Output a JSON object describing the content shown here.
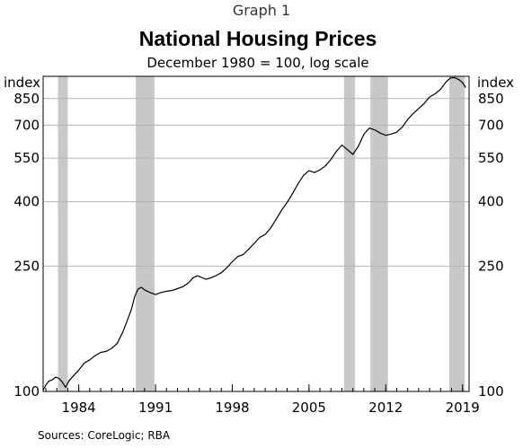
{
  "chart_data": {
    "type": "line",
    "supertitle": "Graph 1",
    "title": "National Housing Prices",
    "subtitle": "December 1980 = 100, log scale",
    "left_unit": "index",
    "right_unit": "index",
    "source": "Sources:  CoreLogic; RBA",
    "y_scale": "log",
    "ylim": [
      100,
      1000
    ],
    "xlim": [
      1980.75,
      2019.6
    ],
    "y_ticks": [
      {
        "value": 100,
        "label": "100"
      },
      {
        "value": 250,
        "label": "250"
      },
      {
        "value": 400,
        "label": "400"
      },
      {
        "value": 550,
        "label": "550"
      },
      {
        "value": 700,
        "label": "700"
      },
      {
        "value": 850,
        "label": "850"
      }
    ],
    "x_ticks": [
      {
        "value": 1984,
        "label": "1984"
      },
      {
        "value": 1991,
        "label": "1991"
      },
      {
        "value": 1998,
        "label": "1998"
      },
      {
        "value": 2005,
        "label": "2005"
      },
      {
        "value": 2012,
        "label": "2012"
      },
      {
        "value": 2019,
        "label": "2019"
      }
    ],
    "shaded_periods": [
      [
        1982.1,
        1983.0
      ],
      [
        1989.2,
        1990.9
      ],
      [
        2008.2,
        2009.2
      ],
      [
        2010.6,
        2012.2
      ],
      [
        2017.8,
        2019.2
      ]
    ],
    "grid": true,
    "line_color": "#000000",
    "shade_color": "#c8c8c8",
    "series": [
      {
        "x": [
          1980.75,
          1981.0,
          1981.3,
          1981.6,
          1981.9,
          1982.2,
          1982.5,
          1982.8,
          1983.1,
          1983.5,
          1984.0,
          1984.5,
          1985.0,
          1985.5,
          1986.0,
          1986.5,
          1987.0,
          1987.5,
          1988.0,
          1988.4,
          1988.8,
          1989.1,
          1989.4,
          1989.7,
          1990.0,
          1990.5,
          1991.0,
          1991.5,
          1992.0,
          1992.5,
          1993.0,
          1993.5,
          1994.0,
          1994.4,
          1994.8,
          1995.2,
          1995.6,
          1996.0,
          1996.5,
          1997.0,
          1997.5,
          1998.0,
          1998.5,
          1999.0,
          1999.5,
          2000.0,
          2000.5,
          2001.0,
          2001.5,
          2002.0,
          2002.5,
          2003.0,
          2003.5,
          2004.0,
          2004.5,
          2005.0,
          2005.5,
          2006.0,
          2006.5,
          2007.0,
          2007.5,
          2008.0,
          2008.5,
          2009.0,
          2009.5,
          2010.0,
          2010.5,
          2011.0,
          2011.5,
          2012.0,
          2012.5,
          2013.0,
          2013.5,
          2014.0,
          2014.5,
          2015.0,
          2015.5,
          2016.0,
          2016.5,
          2017.0,
          2017.5,
          2017.9,
          2018.3,
          2018.7,
          2019.0,
          2019.3
        ],
        "y": [
          101,
          105,
          108,
          109,
          111,
          110,
          107,
          103,
          108,
          112,
          117,
          123,
          126,
          130,
          133,
          134,
          137,
          142,
          154,
          167,
          182,
          200,
          211,
          214,
          210,
          206,
          203,
          206,
          208,
          209,
          212,
          215,
          221,
          229,
          233,
          230,
          227,
          229,
          233,
          238,
          247,
          258,
          268,
          272,
          283,
          295,
          308,
          315,
          330,
          352,
          376,
          398,
          425,
          456,
          485,
          502,
          495,
          505,
          520,
          545,
          578,
          605,
          585,
          565,
          600,
          655,
          685,
          676,
          660,
          650,
          656,
          665,
          690,
          730,
          762,
          790,
          820,
          860,
          880,
          910,
          960,
          988,
          990,
          975,
          955,
          920
        ]
      }
    ]
  }
}
